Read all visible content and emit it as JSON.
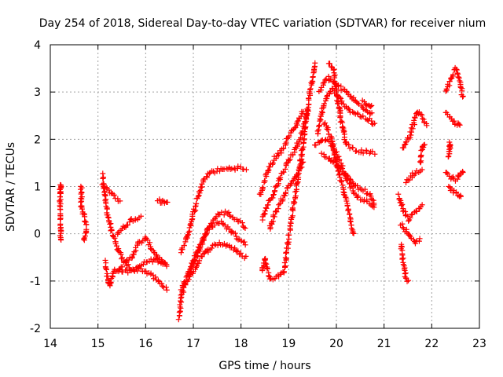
{
  "chart_data": {
    "type": "scatter",
    "title": "Day 254 of 2018, Sidereal Day-to-day VTEC variation (SDTVAR) for receiver nium",
    "xlabel": "GPS time / hours",
    "ylabel": "SDVTAR / TECUs",
    "xlim": [
      14,
      23
    ],
    "ylim": [
      -2,
      4
    ],
    "xticks": [
      "14",
      "15",
      "16",
      "17",
      "18",
      "19",
      "20",
      "21",
      "22",
      "23"
    ],
    "yticks": [
      "-2",
      "-1",
      "0",
      "1",
      "2",
      "3",
      "4"
    ],
    "grid": true,
    "legend": "none",
    "marker": "+",
    "series": [
      {
        "name": "SDTVAR",
        "color": "#ff0000",
        "segments": [
          [
            [
              14.2,
              0.8
            ],
            [
              14.22,
              1.05
            ],
            [
              14.2,
              0.6
            ],
            [
              14.22,
              0.1
            ],
            [
              14.22,
              -0.15
            ]
          ],
          [
            [
              14.65,
              1.0
            ],
            [
              14.65,
              0.6
            ],
            [
              14.7,
              0.4
            ],
            [
              14.75,
              0.2
            ],
            [
              14.75,
              0.0
            ],
            [
              14.7,
              -0.15
            ]
          ],
          [
            [
              15.1,
              1.25
            ],
            [
              15.15,
              0.8
            ],
            [
              15.2,
              0.4
            ],
            [
              15.3,
              0.0
            ],
            [
              15.4,
              -0.3
            ],
            [
              15.55,
              -0.6
            ],
            [
              15.7,
              -0.75
            ],
            [
              15.9,
              -0.75
            ],
            [
              16.1,
              -0.85
            ],
            [
              16.3,
              -1.05
            ],
            [
              16.45,
              -1.15
            ]
          ],
          [
            [
              15.1,
              1.0
            ],
            [
              15.3,
              0.85
            ],
            [
              15.45,
              0.7
            ]
          ],
          [
            [
              15.15,
              -0.6
            ],
            [
              15.2,
              -0.9
            ],
            [
              15.25,
              -1.1
            ],
            [
              15.35,
              -0.75
            ],
            [
              15.6,
              -0.8
            ],
            [
              15.8,
              -0.75
            ],
            [
              16.0,
              -0.6
            ],
            [
              16.2,
              -0.55
            ],
            [
              16.4,
              -0.6
            ]
          ],
          [
            [
              15.4,
              0.0
            ],
            [
              15.55,
              0.15
            ],
            [
              15.7,
              0.3
            ],
            [
              15.9,
              0.35
            ]
          ],
          [
            [
              15.4,
              -0.75
            ],
            [
              15.55,
              -0.65
            ],
            [
              15.7,
              -0.5
            ],
            [
              15.85,
              -0.2
            ],
            [
              16.0,
              -0.1
            ],
            [
              16.15,
              -0.35
            ],
            [
              16.3,
              -0.55
            ],
            [
              16.45,
              -0.7
            ]
          ],
          [
            [
              16.25,
              0.7
            ],
            [
              16.35,
              0.68
            ],
            [
              16.45,
              0.65
            ]
          ],
          [
            [
              16.7,
              -1.8
            ],
            [
              16.75,
              -1.3
            ],
            [
              16.85,
              -1.0
            ],
            [
              17.0,
              -0.8
            ],
            [
              17.15,
              -0.5
            ],
            [
              17.35,
              -0.3
            ],
            [
              17.55,
              -0.2
            ],
            [
              17.75,
              -0.25
            ],
            [
              17.95,
              -0.4
            ],
            [
              18.1,
              -0.5
            ]
          ],
          [
            [
              16.75,
              -1.2
            ],
            [
              16.9,
              -0.8
            ],
            [
              17.05,
              -0.45
            ],
            [
              17.2,
              -0.1
            ],
            [
              17.35,
              0.15
            ],
            [
              17.55,
              0.25
            ],
            [
              17.75,
              0.1
            ],
            [
              17.95,
              -0.1
            ],
            [
              18.1,
              -0.2
            ]
          ],
          [
            [
              16.75,
              -0.4
            ],
            [
              16.9,
              0.05
            ],
            [
              17.05,
              0.6
            ],
            [
              17.2,
              1.1
            ],
            [
              17.35,
              1.3
            ],
            [
              17.55,
              1.35
            ],
            [
              17.75,
              1.38
            ],
            [
              17.95,
              1.4
            ],
            [
              18.1,
              1.35
            ]
          ],
          [
            [
              16.9,
              -0.9
            ],
            [
              17.1,
              -0.4
            ],
            [
              17.3,
              0.1
            ],
            [
              17.5,
              0.4
            ],
            [
              17.7,
              0.45
            ],
            [
              17.9,
              0.3
            ],
            [
              18.1,
              0.15
            ]
          ],
          [
            [
              18.45,
              -0.8
            ],
            [
              18.5,
              -0.5
            ],
            [
              18.6,
              -0.95
            ],
            [
              18.8,
              -0.9
            ],
            [
              18.9,
              -0.8
            ],
            [
              19.0,
              -0.1
            ],
            [
              19.1,
              0.6
            ],
            [
              19.2,
              1.2
            ],
            [
              19.3,
              1.9
            ],
            [
              19.4,
              2.7
            ],
            [
              19.5,
              3.3
            ],
            [
              19.55,
              3.6
            ]
          ],
          [
            [
              18.45,
              0.3
            ],
            [
              18.55,
              0.6
            ],
            [
              18.7,
              0.9
            ],
            [
              18.85,
              1.25
            ],
            [
              19.0,
              1.55
            ],
            [
              19.15,
              1.8
            ],
            [
              19.3,
              2.2
            ],
            [
              19.4,
              2.6
            ]
          ],
          [
            [
              18.4,
              0.8
            ],
            [
              18.55,
              1.3
            ],
            [
              18.7,
              1.6
            ],
            [
              18.85,
              1.75
            ],
            [
              19.0,
              2.05
            ],
            [
              19.15,
              2.3
            ],
            [
              19.3,
              2.6
            ]
          ],
          [
            [
              18.6,
              0.1
            ],
            [
              18.7,
              0.4
            ],
            [
              18.85,
              0.7
            ],
            [
              19.0,
              1.0
            ],
            [
              19.15,
              1.2
            ],
            [
              19.3,
              1.5
            ]
          ],
          [
            [
              19.6,
              2.1
            ],
            [
              19.7,
              2.6
            ],
            [
              19.8,
              2.9
            ],
            [
              19.9,
              3.05
            ],
            [
              20.0,
              2.95
            ],
            [
              20.15,
              2.75
            ],
            [
              20.3,
              2.6
            ],
            [
              20.5,
              2.5
            ],
            [
              20.7,
              2.4
            ],
            [
              20.8,
              2.3
            ]
          ],
          [
            [
              19.65,
              3.0
            ],
            [
              19.75,
              3.2
            ],
            [
              19.85,
              3.3
            ],
            [
              20.0,
              3.15
            ],
            [
              20.2,
              3.0
            ],
            [
              20.4,
              2.8
            ],
            [
              20.6,
              2.65
            ],
            [
              20.75,
              2.55
            ]
          ],
          [
            [
              19.7,
              1.7
            ],
            [
              19.85,
              1.6
            ],
            [
              20.0,
              1.45
            ],
            [
              20.15,
              1.3
            ],
            [
              20.3,
              1.1
            ],
            [
              20.5,
              0.95
            ],
            [
              20.7,
              0.85
            ],
            [
              20.8,
              0.6
            ]
          ],
          [
            [
              19.55,
              1.85
            ],
            [
              19.75,
              2.0
            ],
            [
              19.9,
              1.9
            ],
            [
              20.05,
              1.6
            ],
            [
              20.2,
              1.2
            ],
            [
              20.4,
              0.8
            ],
            [
              20.6,
              0.7
            ],
            [
              20.8,
              0.55
            ]
          ],
          [
            [
              19.85,
              3.6
            ],
            [
              19.95,
              3.45
            ],
            [
              20.0,
              3.0
            ],
            [
              20.1,
              2.4
            ],
            [
              20.2,
              1.9
            ],
            [
              20.35,
              1.8
            ],
            [
              20.5,
              1.75
            ],
            [
              20.65,
              1.72
            ],
            [
              20.8,
              1.7
            ]
          ],
          [
            [
              19.75,
              2.35
            ],
            [
              19.9,
              2.0
            ],
            [
              20.0,
              1.5
            ],
            [
              20.1,
              1.1
            ],
            [
              20.25,
              0.5
            ],
            [
              20.35,
              0.0
            ]
          ],
          [
            [
              20.55,
              2.8
            ],
            [
              20.65,
              2.75
            ],
            [
              20.75,
              2.7
            ]
          ],
          [
            [
              21.35,
              -0.2
            ],
            [
              21.4,
              -0.6
            ],
            [
              21.45,
              -0.9
            ],
            [
              21.5,
              -1.0
            ]
          ],
          [
            [
              21.3,
              0.8
            ],
            [
              21.4,
              0.5
            ],
            [
              21.5,
              0.3
            ],
            [
              21.6,
              0.4
            ],
            [
              21.7,
              0.5
            ],
            [
              21.8,
              0.6
            ]
          ],
          [
            [
              21.35,
              0.2
            ],
            [
              21.5,
              0.0
            ],
            [
              21.65,
              -0.2
            ],
            [
              21.75,
              -0.1
            ]
          ],
          [
            [
              21.45,
              1.1
            ],
            [
              21.55,
              1.2
            ],
            [
              21.65,
              1.3
            ],
            [
              21.8,
              1.35
            ]
          ],
          [
            [
              21.4,
              1.8
            ],
            [
              21.55,
              2.1
            ],
            [
              21.7,
              2.6
            ],
            [
              21.8,
              2.45
            ],
            [
              21.9,
              2.3
            ]
          ],
          [
            [
              21.75,
              1.5
            ],
            [
              21.8,
              1.8
            ],
            [
              21.85,
              1.85
            ]
          ],
          [
            [
              22.3,
              3.0
            ],
            [
              22.4,
              3.3
            ],
            [
              22.5,
              3.5
            ],
            [
              22.6,
              3.2
            ],
            [
              22.65,
              2.9
            ]
          ],
          [
            [
              22.3,
              2.6
            ],
            [
              22.4,
              2.45
            ],
            [
              22.5,
              2.35
            ],
            [
              22.6,
              2.3
            ]
          ],
          [
            [
              22.3,
              1.3
            ],
            [
              22.4,
              1.2
            ],
            [
              22.5,
              1.15
            ],
            [
              22.6,
              1.25
            ],
            [
              22.65,
              1.3
            ]
          ],
          [
            [
              22.35,
              1.6
            ],
            [
              22.38,
              1.9
            ],
            [
              22.4,
              1.8
            ]
          ],
          [
            [
              22.35,
              1.0
            ],
            [
              22.45,
              0.9
            ],
            [
              22.55,
              0.85
            ],
            [
              22.6,
              0.8
            ]
          ]
        ]
      }
    ]
  }
}
